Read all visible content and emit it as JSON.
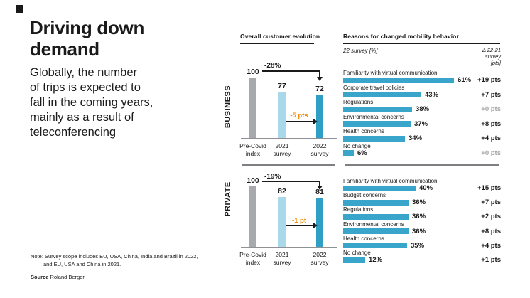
{
  "slide": {
    "title": "Driving down\ndemand",
    "subtitle": "Globally, the number\nof trips is expected to\nfall in the coming years,\nmainly as a result of\nteleconferencing",
    "note_line1": "Note: Survey scope includes EU, USA, China, India and Brazil in 2022,",
    "note_line2": "and EU, USA and China in 2021.",
    "source_label": "Source",
    "source_value": "Roland Berger"
  },
  "sections": {
    "business": "BUSINESS",
    "private": "PRIVATE"
  },
  "colors": {
    "text": "#1a1a1a",
    "bar_grey": "#a7a9ac",
    "bar_light_blue": "#a9d8e8",
    "bar_teal": "#2f9fc5",
    "bar_blue": "#3aa5ca",
    "orange": "#f18a00",
    "muted_delta": "#a4a6a9",
    "axis_grey": "#8f9194",
    "divider_grey": "#7d7f82"
  },
  "chart_data": [
    {
      "id": "business-evolution",
      "type": "bar",
      "section": "BUSINESS",
      "title": "Overall customer evolution",
      "categories": [
        "Pre-Covid\nindex",
        "2021\nsurvey",
        "2022\nsurvey"
      ],
      "values": [
        100,
        77,
        72
      ],
      "ylim": [
        0,
        100
      ],
      "total_change_label": "-28%",
      "points_change_label": "-5 pts"
    },
    {
      "id": "business-reasons",
      "type": "bar",
      "orientation": "horizontal",
      "section": "BUSINESS",
      "title": "Reasons for changed mobility behavior",
      "value_axis_label": "22 survey [%]",
      "delta_column_header": "Δ 22-21\nsurvey\n[pts]",
      "categories": [
        "Familiarity with virtual communication",
        "Corporate travel policies",
        "Regulations",
        "Environmental concerns",
        "Health concerns",
        "No change"
      ],
      "values": [
        61,
        43,
        38,
        37,
        34,
        6
      ],
      "value_labels": [
        "61%",
        "43%",
        "38%",
        "37%",
        "34%",
        "6%"
      ],
      "deltas": [
        "+19 pts",
        "+7 pts",
        "+0 pts",
        "+8 pts",
        "+4 pts",
        "+0 pts"
      ],
      "delta_muted": [
        false,
        false,
        true,
        false,
        false,
        true
      ]
    },
    {
      "id": "private-evolution",
      "type": "bar",
      "section": "PRIVATE",
      "title": "Overall customer evolution",
      "categories": [
        "Pre-Covid\nindex",
        "2021\nsurvey",
        "2022\nsurvey"
      ],
      "values": [
        100,
        82,
        81
      ],
      "ylim": [
        0,
        100
      ],
      "total_change_label": "-19%",
      "points_change_label": "-1 pt"
    },
    {
      "id": "private-reasons",
      "type": "bar",
      "orientation": "horizontal",
      "section": "PRIVATE",
      "categories": [
        "Familiarity with virtual communication",
        "Budget concerns",
        "Regulations",
        "Environmental concerns",
        "Health concerns",
        "No change"
      ],
      "values": [
        40,
        36,
        36,
        36,
        35,
        12
      ],
      "value_labels": [
        "40%",
        "36%",
        "36%",
        "36%",
        "35%",
        "12%"
      ],
      "deltas": [
        "+15 pts",
        "+7 pts",
        "+2 pts",
        "+8 pts",
        "+4 pts",
        "+1 pts"
      ],
      "delta_muted": [
        false,
        false,
        false,
        false,
        false,
        false
      ]
    }
  ]
}
